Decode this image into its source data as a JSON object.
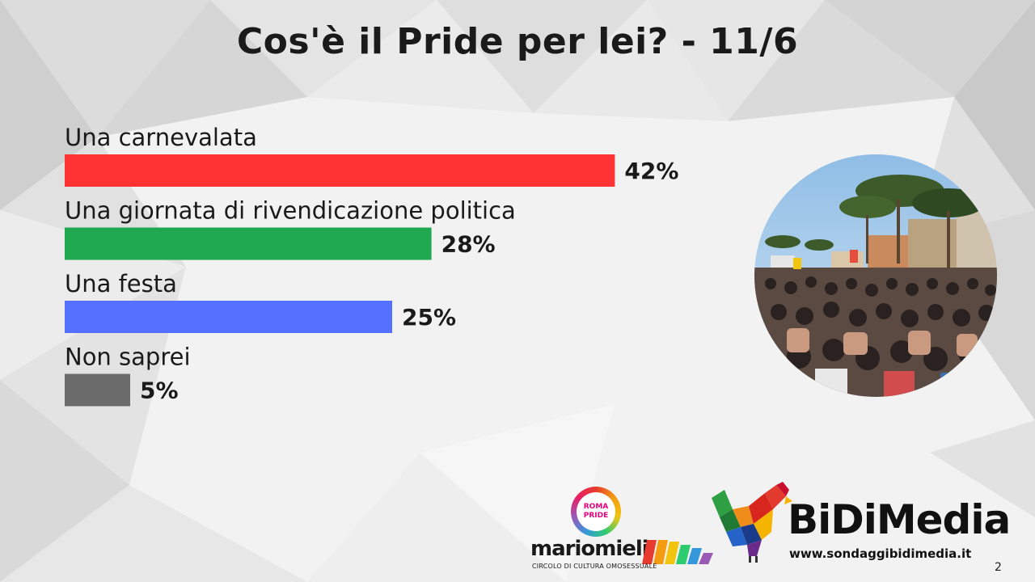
{
  "slide": {
    "title": "Cos'è il Pride per lei? - 11/6",
    "page_number": "2"
  },
  "chart_data": {
    "type": "bar",
    "orientation": "horizontal",
    "title": "Cos'è il Pride per lei? - 11/6",
    "categories": [
      "Una carnevalata",
      "Una giornata di rivendicazione politica",
      "Una festa",
      "Non saprei"
    ],
    "values": [
      42,
      28,
      25,
      5
    ],
    "value_labels": [
      "42%",
      "28%",
      "25%",
      "5%"
    ],
    "colors": [
      "#ff3333",
      "#1fa84f",
      "#5470ff",
      "#6b6b6b"
    ],
    "unit": "%",
    "xlim": [
      0,
      50
    ],
    "grid": false,
    "legend": "none"
  },
  "photo": {
    "subject": "pride-crowd-photo"
  },
  "logos": {
    "roma_pride": {
      "line1": "ROMA",
      "line2": "PRIDE",
      "name": "mariomieli",
      "subtitle": "CIRCOLO DI CULTURA OMOSESSUALE"
    },
    "bidimedia": {
      "name": "BiDiMedia",
      "url": "www.sondaggibidimedia.it"
    }
  }
}
